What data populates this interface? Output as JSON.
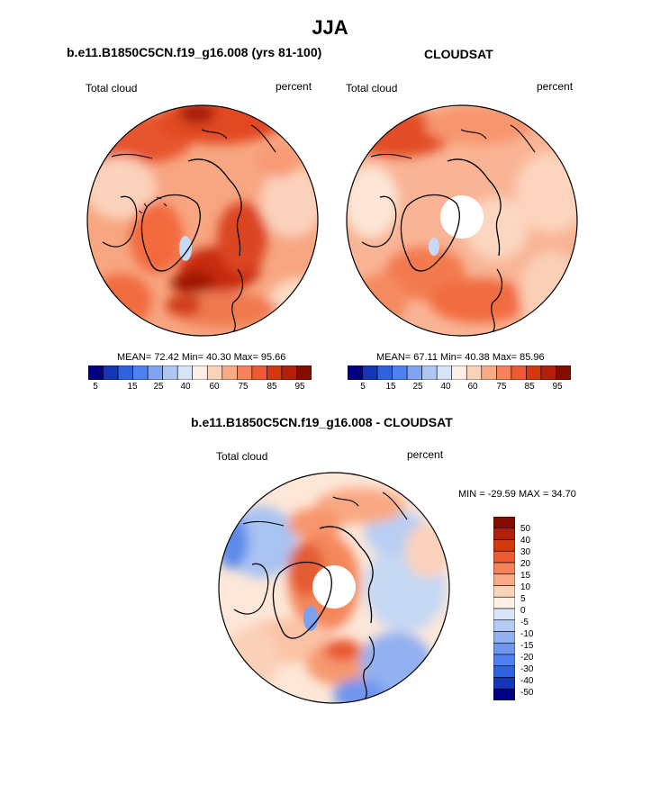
{
  "figure": {
    "title": "JJA"
  },
  "panels": [
    {
      "id": "model",
      "subtitle": "b.e11.B1850C5CN.f19_g16.008 (yrs 81-100)",
      "left_label": "Total cloud",
      "right_label": "percent",
      "stats": "MEAN=  72.42  Min=  40.30  Max=  95.66"
    },
    {
      "id": "obs",
      "subtitle": "CLOUDSAT",
      "left_label": "Total cloud",
      "right_label": "percent",
      "stats": "MEAN=  67.11  Min=  40.38  Max=  85.96"
    },
    {
      "id": "diff",
      "subtitle": "b.e11.B1850C5CN.f19_g16.008 - CLOUDSAT",
      "left_label": "Total cloud",
      "right_label": "percent",
      "stats": "MIN = -29.59 MAX =  34.70"
    }
  ],
  "colorbar_abs": {
    "colors": [
      "#000080",
      "#1535b8",
      "#2f62dd",
      "#4f82f0",
      "#7fa4f2",
      "#b0c6f2",
      "#d9e5f6",
      "#fdf0e4",
      "#fcd2b8",
      "#f9ab86",
      "#f5825b",
      "#eb5a33",
      "#d4380f",
      "#b3200a",
      "#840d00"
    ],
    "ticks": [
      "5",
      "15",
      "25",
      "40",
      "60",
      "75",
      "85",
      "95"
    ]
  },
  "colorbar_diff": {
    "colors": [
      "#000080",
      "#1535b8",
      "#2f62dd",
      "#4f82f0",
      "#6f95ee",
      "#93b1f1",
      "#b5cbf3",
      "#dae6f7",
      "#fdf0e4",
      "#fcd2b8",
      "#f9ab86",
      "#f5825b",
      "#eb5a33",
      "#d4380f",
      "#b3200a",
      "#840d00"
    ],
    "ticks": [
      "50",
      "40",
      "30",
      "20",
      "15",
      "10",
      "5",
      "0",
      "-5",
      "-10",
      "-15",
      "-20",
      "-30",
      "-40",
      "-50"
    ]
  }
}
